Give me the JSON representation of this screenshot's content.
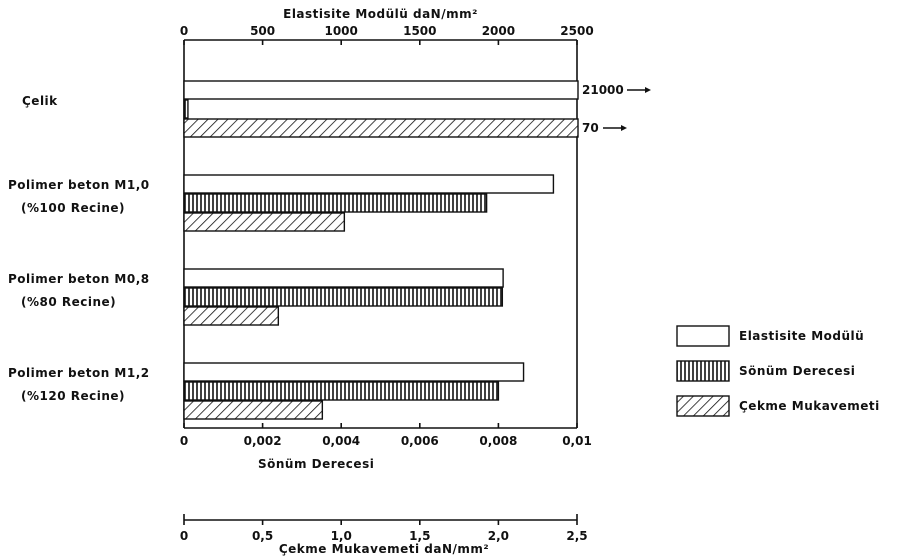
{
  "chart_data": {
    "type": "bar",
    "orientation": "horizontal",
    "categories": [
      [
        "Çelik"
      ],
      [
        "Polimer beton M1,0",
        "(%100 Recine)"
      ],
      [
        "Polimer beton M0,8",
        "(%80 Recine)"
      ],
      [
        "Polimer beton M1,2",
        "(%120 Recine)"
      ]
    ],
    "series": [
      {
        "name": "Elastisite Modülü",
        "values": [
          21000,
          2350,
          2030,
          2160
        ],
        "pattern": "empty",
        "overflow_label": "21000"
      },
      {
        "name": "Sönüm Derecesi",
        "values": [
          0.0001,
          0.0077,
          0.0081,
          0.008
        ],
        "pattern": "vertical-lines"
      },
      {
        "name": "Çekme Mukavemeti",
        "values": [
          70,
          1.02,
          0.6,
          0.88
        ],
        "pattern": "diagonal-hatch",
        "overflow_label": "70"
      }
    ],
    "axes": {
      "top": {
        "label": "Elastisite Modülü  daN/mm²",
        "range": [
          0,
          2500
        ],
        "ticks": [
          "0",
          "500",
          "1000",
          "1500",
          "2000",
          "2500"
        ]
      },
      "bottom1": {
        "label": "Sönüm Derecesi",
        "range": [
          0,
          0.01
        ],
        "ticks": [
          "0",
          "0,002",
          "0,004",
          "0,006",
          "0,008",
          "0,01"
        ]
      },
      "bottom2": {
        "label": "Çekme Mukavemeti  daN/mm²",
        "range": [
          0,
          2.5
        ],
        "ticks": [
          "0",
          "0,5",
          "1,0",
          "1,5",
          "2,0",
          "2,5"
        ]
      }
    },
    "legend": {
      "placement": "right"
    },
    "grid": false
  }
}
